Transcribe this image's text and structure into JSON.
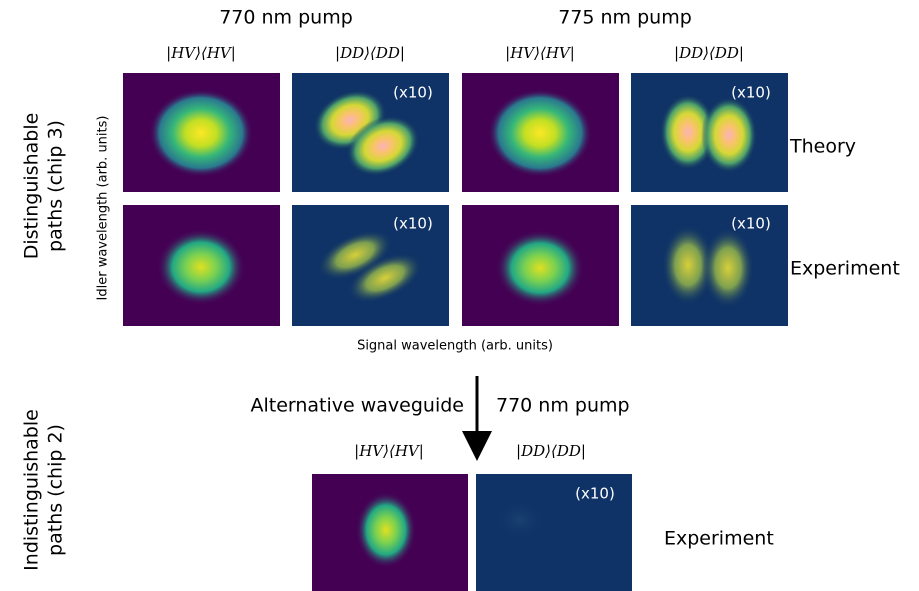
{
  "top": {
    "pump_labels": [
      "770 nm pump",
      "775 nm pump"
    ],
    "column_labels": [
      "|HV⟩⟨HV|",
      "|DD⟩⟨DD|",
      "|HV⟩⟨HV|",
      "|DD⟩⟨DD|"
    ],
    "scale_labels": [
      "(x10)",
      "(x10)",
      "(x10)",
      "(x10)"
    ],
    "row_labels": [
      "Theory",
      "Experiment"
    ],
    "group_label": [
      "Distinguishable",
      "paths (chip 3)"
    ],
    "y_axis_label": "Idler wavelength (arb. units)",
    "x_axis_label": "Signal wavelength (arb. units)"
  },
  "bottom": {
    "arrow_left_label": "Alternative waveguide",
    "arrow_right_label": "770 nm pump",
    "column_labels": [
      "|HV⟩⟨HV|",
      "|DD⟩⟨DD|"
    ],
    "scale_label": "(x10)",
    "row_label": "Experiment",
    "group_label": [
      "Indistinguishable",
      "paths (chip 2)"
    ]
  }
}
